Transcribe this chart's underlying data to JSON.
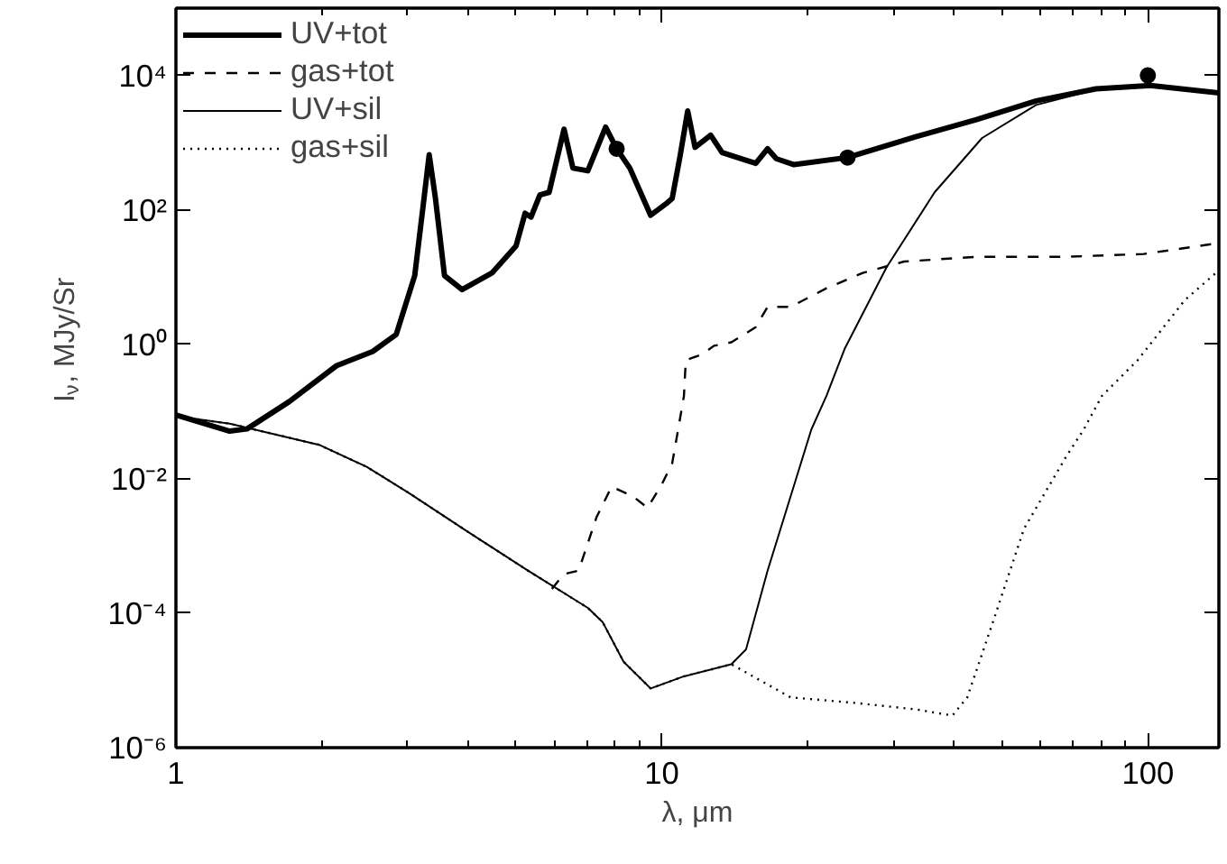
{
  "chart_data": {
    "type": "line",
    "xlabel": "λ, μm",
    "ylabel": "I$_{ν}$, MJy/Sr",
    "log": "xy",
    "grid": false,
    "legend": "top left",
    "xlim": [
      1,
      140
    ],
    "ylim": [
      1e-06,
      100000.0
    ],
    "xticks": [
      1,
      {
        "value": 2,
        "label": null
      },
      {
        "value": 3,
        "label": null
      },
      {
        "value": 4,
        "label": null
      },
      {
        "value": 5,
        "label": null
      },
      {
        "value": 6,
        "label": null
      },
      {
        "value": 7,
        "label": null
      },
      {
        "value": 8,
        "label": null
      },
      {
        "value": 9,
        "label": null
      },
      10,
      {
        "value": 20,
        "label": null
      },
      {
        "value": 30,
        "label": null
      },
      {
        "value": 40,
        "label": null
      },
      {
        "value": 50,
        "label": null
      },
      {
        "value": 60,
        "label": null
      },
      {
        "value": 70,
        "label": null
      },
      {
        "value": 80,
        "label": null
      },
      {
        "value": 90,
        "label": null
      },
      100
    ],
    "yticks": [
      {
        "value": 1e-06,
        "label": "10⁻⁶"
      },
      {
        "value": 0.0001,
        "label": "10⁻⁴"
      },
      {
        "value": 0.01,
        "label": "10⁻²"
      },
      {
        "value": 1,
        "label": "10⁰"
      },
      {
        "value": 100,
        "label": "10²"
      },
      {
        "value": 10000,
        "label": "10⁴"
      }
    ],
    "series": [
      {
        "name": "UV+tot",
        "color": "#000000",
        "line_style": "solid",
        "x": [
          1,
          1.29,
          1.4,
          1.71,
          2.14,
          2.54,
          2.84,
          3.1,
          3.23,
          3.32,
          3.42,
          3.57,
          3.88,
          4.47,
          5.01,
          5.23,
          5.38,
          5.61,
          5.86,
          6.29,
          6.56,
          7.04,
          7.66,
          8.07,
          8.59,
          9.48,
          10.2,
          10.5,
          10.9,
          11.3,
          11.7,
          12.6,
          13.3,
          14.3,
          15.6,
          16.5,
          17.2,
          18.7,
          24.1,
          33.4,
          44.4,
          58.9,
          78.2,
          101,
          140
        ],
        "values": [
          0.089,
          0.051,
          0.055,
          0.14,
          0.48,
          0.78,
          1.4,
          10.5,
          123,
          660,
          148,
          10.5,
          6.5,
          11.5,
          29,
          89,
          78,
          166,
          182,
          1580,
          417,
          380,
          1700,
          810,
          417,
          83,
          123,
          148,
          630,
          2950,
          850,
          1290,
          710,
          600,
          490,
          810,
          575,
          470,
          600,
          1230,
          2190,
          4170,
          6310,
          7080,
          5500
        ]
      },
      {
        "name": "gas+tot",
        "color": "#000000",
        "line_style": "dashed",
        "x": [
          5.94,
          6.28,
          6.74,
          7.34,
          7.88,
          8.71,
          9.34,
          10.0,
          10.5,
          10.8,
          11.1,
          11.2,
          12.1,
          12.8,
          13.9,
          15.6,
          16.5,
          18.4,
          21.8,
          25.9,
          31.5,
          44.4,
          67.8,
          98,
          140
        ],
        "values": [
          0.00023,
          0.00038,
          0.00043,
          0.0027,
          0.0076,
          0.0055,
          0.0037,
          0.0083,
          0.017,
          0.054,
          0.17,
          0.58,
          0.71,
          0.95,
          1.07,
          1.8,
          3.6,
          3.6,
          6.8,
          11.5,
          17,
          20,
          20,
          22,
          32
        ]
      },
      {
        "name": "UV+sil",
        "color": "#000000",
        "line_style": "solid",
        "x": [
          1,
          1.29,
          1.97,
          2.47,
          3.01,
          4.0,
          5.3,
          7.04,
          7.55,
          8.34,
          9.48,
          11.1,
          13.9,
          14.9,
          16.5,
          19.0,
          20.3,
          21.8,
          23.8,
          29.0,
          36.4,
          45.6,
          58.9,
          78.2,
          101,
          140
        ],
        "values": [
          0.085,
          0.066,
          0.032,
          0.015,
          0.0062,
          0.0016,
          0.00043,
          0.00012,
          7.4e-05,
          1.9e-05,
          7.6e-06,
          1.15e-05,
          1.74e-05,
          2.9e-05,
          0.00043,
          0.0115,
          0.054,
          0.17,
          0.87,
          14,
          182,
          1170,
          3630,
          6170,
          6760,
          5500
        ]
      },
      {
        "name": "gas+sil",
        "color": "#000000",
        "line_style": "dotted",
        "x": [
          1,
          1.29,
          1.97,
          2.47,
          3.01,
          4.0,
          5.3,
          7.04,
          7.55,
          8.34,
          9.48,
          11.1,
          13.9,
          18.4,
          25.2,
          33.4,
          39.6,
          42.5,
          48.2,
          55.6,
          67.8,
          73.8,
          80.4,
          95.3,
          119,
          140
        ],
        "values": [
          0.085,
          0.066,
          0.032,
          0.015,
          0.0062,
          0.0016,
          0.00043,
          0.00012,
          7.4e-05,
          1.9e-05,
          7.6e-06,
          1.15e-05,
          1.74e-05,
          5.6e-06,
          4.6e-06,
          3.7e-06,
          3e-06,
          5.6e-06,
          8.1e-05,
          0.0018,
          0.021,
          0.054,
          0.17,
          0.58,
          4.5,
          12.6
        ]
      },
      {
        "type": "scatter",
        "marker": "circle",
        "color": "#000000",
        "x": [
          8.07,
          24.1,
          100
        ],
        "values": [
          810,
          600,
          10000
        ]
      }
    ]
  }
}
